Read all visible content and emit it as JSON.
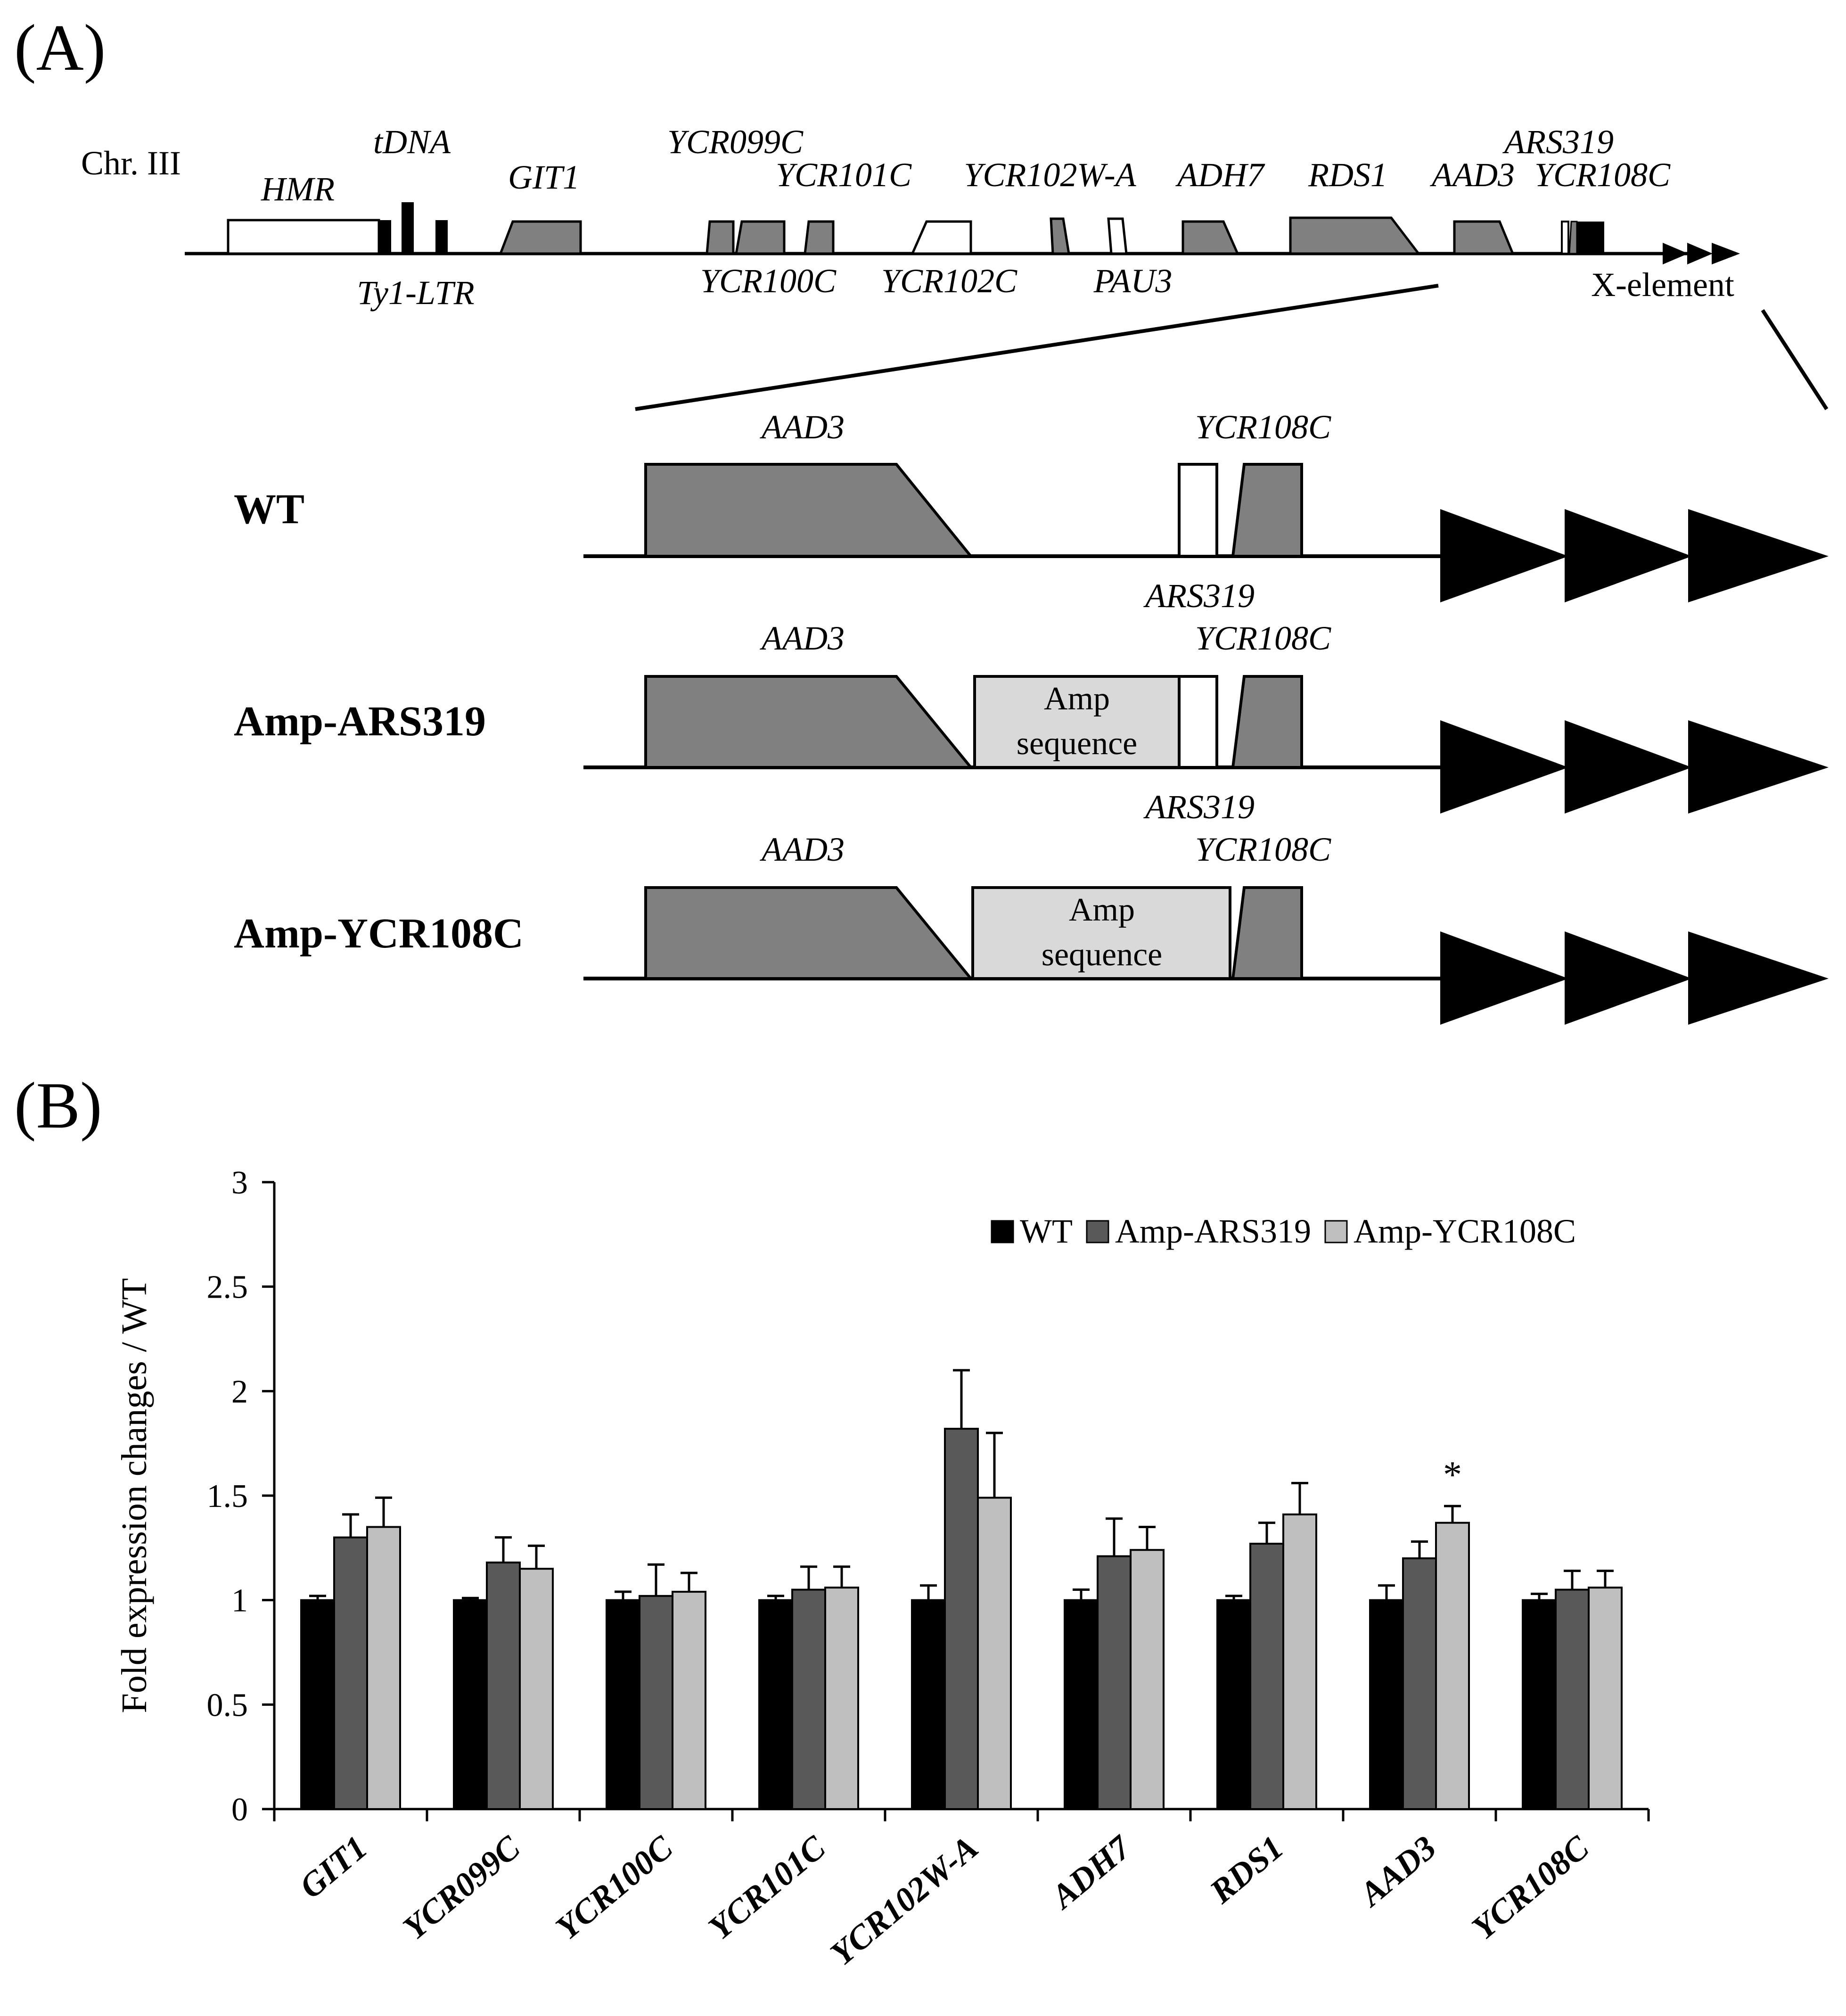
{
  "panel_a": {
    "label": "(A)",
    "chromosome": "Chr. III",
    "top_genes": {
      "hmr": "HMR",
      "tdna": "tDNA",
      "git1": "GIT1",
      "ycr099c": "YCR099C",
      "ycr101c": "YCR101C",
      "ycr102wa": "YCR102W-A",
      "adh7": "ADH7",
      "rds1": "RDS1",
      "aad3": "AAD3",
      "ars319": "ARS319",
      "ycr108c": "YCR108C"
    },
    "bottom_genes": {
      "ty1ltr": "Ty1-LTR",
      "ycr100c": "YCR100C",
      "ycr102c": "YCR102C",
      "pau3": "PAU3",
      "xelement": "X-element"
    },
    "constructs": [
      {
        "name": "WT",
        "aad3": "AAD3",
        "ycr108c": "YCR108C",
        "ars319": "ARS319"
      },
      {
        "name": "Amp-ARS319",
        "aad3": "AAD3",
        "ycr108c": "YCR108C",
        "ars319": "ARS319",
        "amp_line1": "Amp",
        "amp_line2": "sequence"
      },
      {
        "name": "Amp-YCR108C",
        "aad3": "AAD3",
        "ycr108c": "YCR108C",
        "amp_line1": "Amp",
        "amp_line2": "sequence"
      }
    ]
  },
  "panel_b": {
    "label": "(B)",
    "colors": {
      "WT": "#000000",
      "Amp-ARS319": "#595959",
      "Amp-YCR108C": "#bfbfbf"
    },
    "significance_marker": "*"
  },
  "chart_data": {
    "type": "bar",
    "title": "",
    "xlabel": "",
    "ylabel": "Fold expression changes / WT",
    "ylim": [
      0,
      3
    ],
    "yticks": [
      "0",
      "0.5",
      "1",
      "1.5",
      "2",
      "2.5",
      "3"
    ],
    "ytick_values": [
      0,
      0.5,
      1,
      1.5,
      2,
      2.5,
      3
    ],
    "legend_position": "top-right",
    "categories": [
      "GIT1",
      "YCR099C",
      "YCR100C",
      "YCR101C",
      "YCR102W-A",
      "ADH7",
      "RDS1",
      "AAD3",
      "YCR108C"
    ],
    "series": [
      {
        "name": "WT",
        "values": [
          1.0,
          1.0,
          1.0,
          1.0,
          1.0,
          1.0,
          1.0,
          1.0,
          1.0
        ],
        "errors": [
          0.02,
          0.01,
          0.04,
          0.02,
          0.07,
          0.05,
          0.02,
          0.07,
          0.03
        ]
      },
      {
        "name": "Amp-ARS319",
        "values": [
          1.3,
          1.18,
          1.02,
          1.05,
          1.82,
          1.21,
          1.27,
          1.2,
          1.05
        ],
        "errors": [
          0.11,
          0.12,
          0.15,
          0.11,
          0.28,
          0.18,
          0.1,
          0.08,
          0.09
        ]
      },
      {
        "name": "Amp-YCR108C",
        "values": [
          1.35,
          1.15,
          1.04,
          1.06,
          1.49,
          1.24,
          1.41,
          1.37,
          1.06
        ],
        "errors": [
          0.14,
          0.11,
          0.09,
          0.1,
          0.31,
          0.11,
          0.15,
          0.08,
          0.08
        ]
      }
    ],
    "annotations": [
      {
        "category": "AAD3",
        "series": "Amp-YCR108C",
        "text": "*"
      }
    ]
  }
}
